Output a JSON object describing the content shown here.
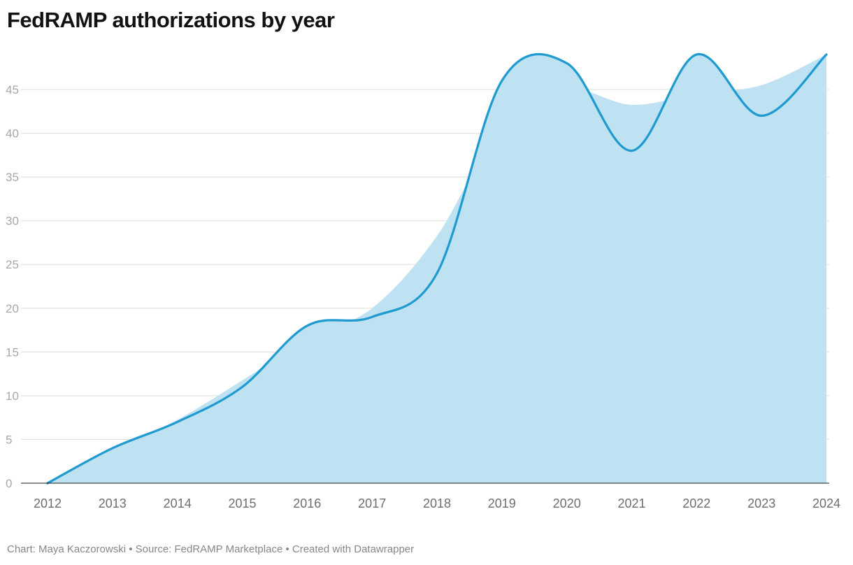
{
  "title": "FedRAMP authorizations by year",
  "footer": {
    "text": "Chart: Maya Kaczorowski • Source: FedRAMP Marketplace • Created with Datawrapper",
    "chart_by": "Maya Kaczorowski",
    "source": "FedRAMP Marketplace",
    "tool": "Datawrapper"
  },
  "chart_data": {
    "type": "area",
    "title": "FedRAMP authorizations by year",
    "x": [
      2012,
      2013,
      2014,
      2015,
      2016,
      2017,
      2018,
      2019,
      2020,
      2021,
      2022,
      2023,
      2024
    ],
    "values": [
      0,
      4,
      7,
      11,
      18,
      19,
      24,
      46,
      48,
      38,
      49,
      42,
      49
    ],
    "xlabel": "",
    "ylabel": "",
    "ylim": [
      0,
      50
    ],
    "yticks": [
      0,
      5,
      10,
      15,
      20,
      25,
      30,
      35,
      40,
      45
    ],
    "grid": "horizontal",
    "legend": "none",
    "curve": "smooth",
    "colors": {
      "line": "#1f9bd0",
      "fill": "#bfe2f2",
      "grid": "#dddddd",
      "axis": "#1a1a1a",
      "y_tick_label": "#a8a8a8",
      "x_tick_label": "#6e6e6e"
    }
  }
}
